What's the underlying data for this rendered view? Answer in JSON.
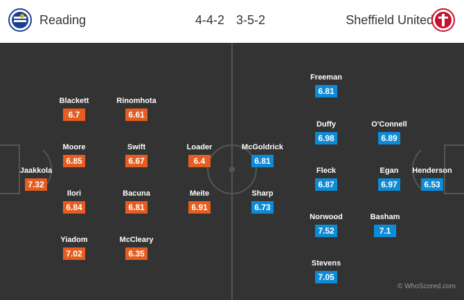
{
  "header": {
    "home_team": "Reading",
    "away_team": "Sheffield United",
    "home_formation": "4-4-2",
    "away_formation": "3-5-2",
    "home_crest_icon": "reading-crest-icon",
    "away_crest_icon": "sheffield-united-crest-icon"
  },
  "colors": {
    "home_rating": "#e55d20",
    "away_rating": "#0e8bd6",
    "pitch": "#333333"
  },
  "home_players": [
    {
      "name": "Jaakkola",
      "rating": "7.32"
    },
    {
      "name": "Blackett",
      "rating": "6.7"
    },
    {
      "name": "Moore",
      "rating": "6.85"
    },
    {
      "name": "Ilori",
      "rating": "6.84"
    },
    {
      "name": "Yiadom",
      "rating": "7.02"
    },
    {
      "name": "Rinomhota",
      "rating": "6.61"
    },
    {
      "name": "Swift",
      "rating": "6.67"
    },
    {
      "name": "Bacuna",
      "rating": "6.81"
    },
    {
      "name": "McCleary",
      "rating": "6.35"
    },
    {
      "name": "Loader",
      "rating": "6.4"
    },
    {
      "name": "Meite",
      "rating": "6.91"
    }
  ],
  "away_players": [
    {
      "name": "McGoldrick",
      "rating": "6.81"
    },
    {
      "name": "Sharp",
      "rating": "6.73"
    },
    {
      "name": "Freeman",
      "rating": "6.81"
    },
    {
      "name": "Duffy",
      "rating": "6.98"
    },
    {
      "name": "Fleck",
      "rating": "6.87"
    },
    {
      "name": "Norwood",
      "rating": "7.52"
    },
    {
      "name": "Stevens",
      "rating": "7.05"
    },
    {
      "name": "O'Connell",
      "rating": "6.89"
    },
    {
      "name": "Egan",
      "rating": "6.97"
    },
    {
      "name": "Basham",
      "rating": "7.1"
    },
    {
      "name": "Henderson",
      "rating": "6.53"
    }
  ],
  "watermark": "© WhoScored.com"
}
